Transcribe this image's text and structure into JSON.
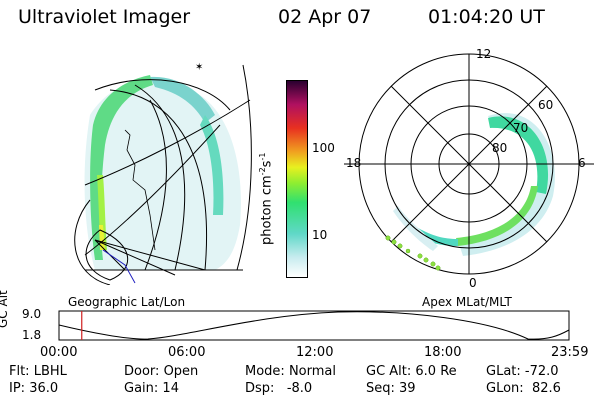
{
  "header": {
    "title": "Ultraviolet Imager",
    "date": "02 Apr 07",
    "time": "01:04:20 UT"
  },
  "colorbar": {
    "label": "photon cm",
    "label_sup1": "-2",
    "label_mid": "s",
    "label_sup2": "-1",
    "ticks": [
      "100",
      "10"
    ]
  },
  "left_panel": {
    "caption": "Geographic Lat/Lon"
  },
  "right_panel": {
    "caption": "Apex MLat/MLT",
    "mlt_labels": {
      "top": "12",
      "left": "18",
      "right": "6",
      "bottom": "0"
    },
    "mlat_labels": [
      "60",
      "70",
      "80"
    ]
  },
  "orbit_plot": {
    "y_label": "GC Alt",
    "y_ticks": [
      "9.0",
      "1.8"
    ],
    "x_ticks": [
      "00:00",
      "06:00",
      "12:00",
      "18:00",
      "23:59"
    ],
    "marker_time_hours": 1.07
  },
  "info": {
    "flt": {
      "key": "Flt:",
      "value": "LBHL"
    },
    "ip": {
      "key": "IP:",
      "value": "36.0"
    },
    "door": {
      "key": "Door:",
      "value": "Open"
    },
    "gain": {
      "key": "Gain:",
      "value": "14"
    },
    "mode": {
      "key": "Mode:",
      "value": "Normal"
    },
    "dsp": {
      "key": "Dsp:",
      "value": "-8.0"
    },
    "gcalt": {
      "key": "GC Alt:",
      "value": "6.0 Re"
    },
    "seq": {
      "key": "Seq:",
      "value": "39"
    },
    "glat": {
      "key": "GLat:",
      "value": "-72.0"
    },
    "glon": {
      "key": "GLon:",
      "value": "82.6"
    }
  },
  "colors": {
    "scale": [
      "#ffffff",
      "#bfe6ea",
      "#60d8c8",
      "#30e070",
      "#90ee30",
      "#e8f020",
      "#f0a020",
      "#e83020",
      "#b01060",
      "#2a0030"
    ]
  }
}
